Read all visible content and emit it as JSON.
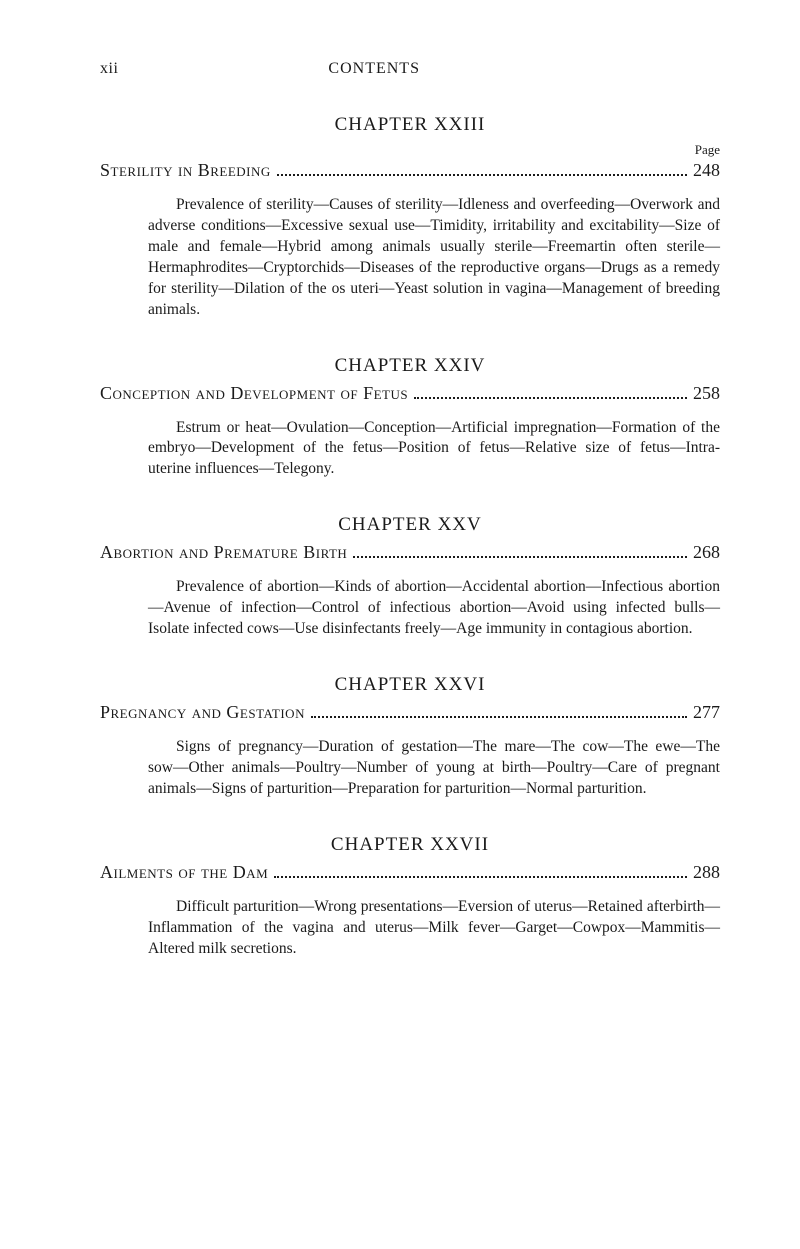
{
  "header": {
    "roman": "xii",
    "label": "CONTENTS"
  },
  "page_label": "Page",
  "chapters": [
    {
      "heading": "CHAPTER XXIII",
      "show_page_label": true,
      "title": "Sterility in Breeding",
      "page": "248",
      "description": "Prevalence of sterility—Causes of sterility—Idleness and overfeeding—Overwork and adverse conditions—Excessive sexual use—Timidity, irritability and excitability—Size of male and female—Hybrid among animals usually sterile—Freemartin often sterile—Hermaphrodites—Cryptorchids—Diseases of the reproductive organs—Drugs as a remedy for sterility—Dilation of the os uteri—Yeast solution in vagina—Management of breeding animals."
    },
    {
      "heading": "CHAPTER XXIV",
      "show_page_label": false,
      "title": "Conception and Development of Fetus",
      "page": "258",
      "description": "Estrum or heat—Ovulation—Conception—Artificial impregnation—Formation of the embryo—Development of the fetus—Position of fetus—Relative size of fetus—Intra-uterine influences—Telegony."
    },
    {
      "heading": "CHAPTER XXV",
      "show_page_label": false,
      "title": "Abortion and Premature Birth",
      "page": "268",
      "description": "Prevalence of abortion—Kinds of abortion—Accidental abortion—Infectious abortion—Avenue of infection—Control of infectious abortion—Avoid using infected bulls—Isolate infected cows—Use disinfectants freely—Age immunity in contagious abortion."
    },
    {
      "heading": "CHAPTER XXVI",
      "show_page_label": false,
      "title": "Pregnancy and Gestation",
      "page": "277",
      "description": "Signs of pregnancy—Duration of gestation—The mare—The cow—The ewe—The sow—Other animals—Poultry—Number of young at birth—Poultry—Care of pregnant animals—Signs of parturition—Preparation for parturition—Normal parturition."
    },
    {
      "heading": "CHAPTER XXVII",
      "show_page_label": false,
      "title": "Ailments of the Dam",
      "page": "288",
      "description": "Difficult parturition—Wrong presentations—Eversion of uterus—Retained afterbirth—Inflammation of the vagina and uterus—Milk fever—Garget—Cowpox—Mammitis—Altered milk secretions."
    }
  ]
}
